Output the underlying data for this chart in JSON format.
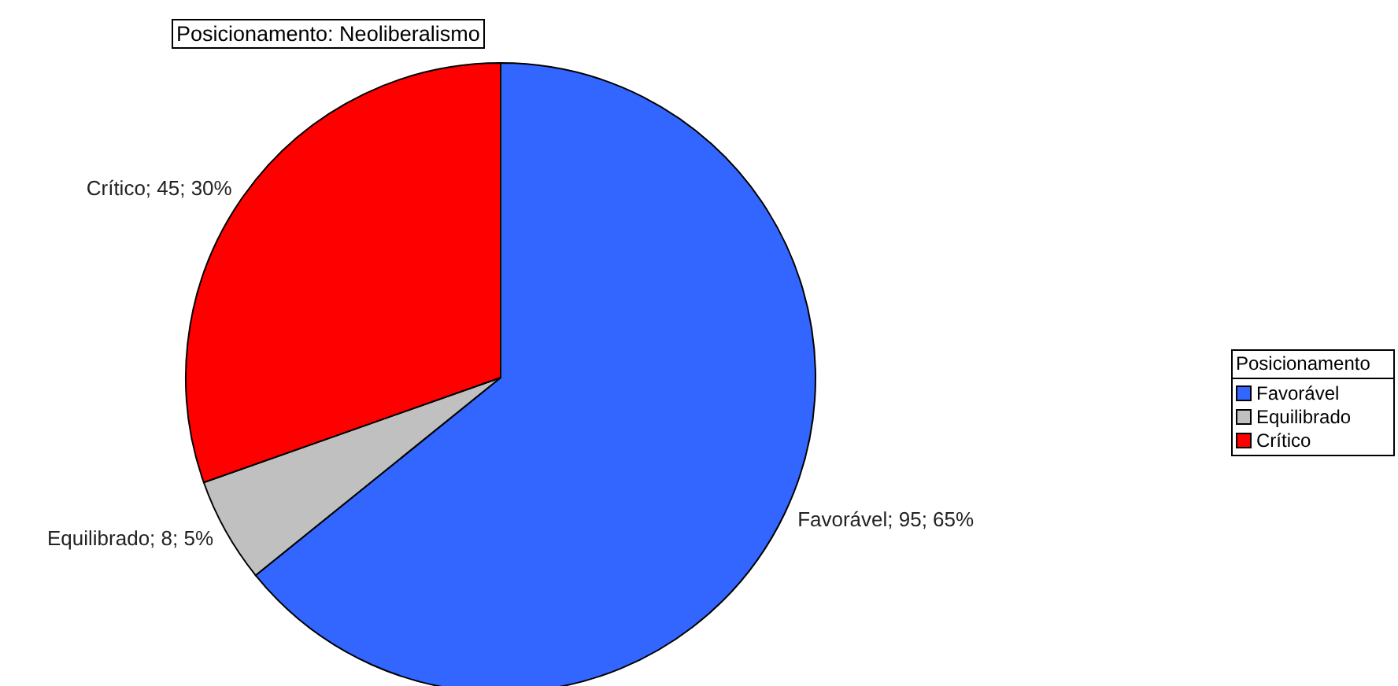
{
  "chart_data": {
    "type": "pie",
    "title": "Posicionamento: Neoliberalismo",
    "legend_title": "Posicionamento",
    "categories": [
      "Favorável",
      "Equilibrado",
      "Crítico"
    ],
    "values": [
      95,
      8,
      45
    ],
    "colors": [
      "#3366ff",
      "#c0c0c0",
      "#ff0000"
    ],
    "value_labels": [
      "Favorável; 95; 65%",
      "Equilibrado; 8; 5%",
      "Crítico; 45; 30%"
    ],
    "legend": "right"
  }
}
